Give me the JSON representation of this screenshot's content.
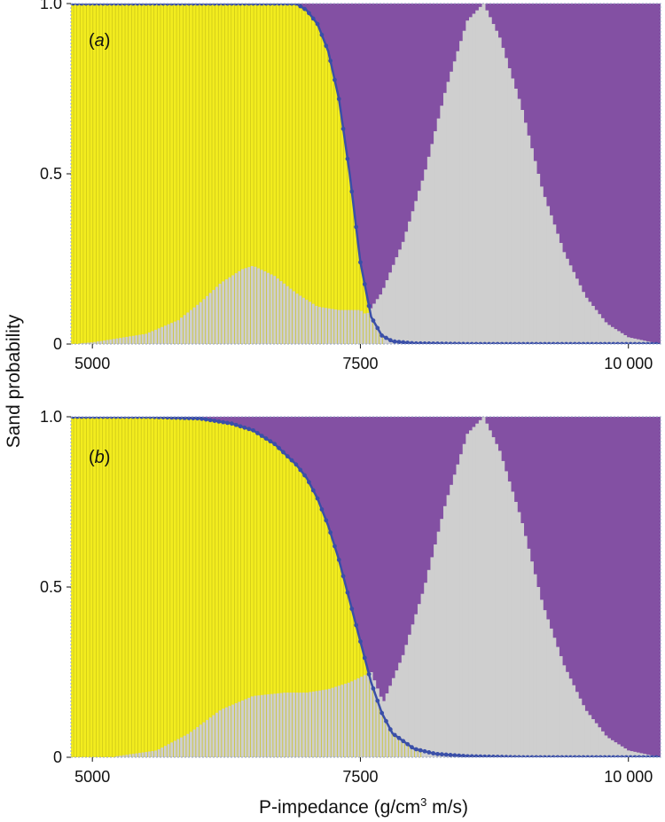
{
  "chart_data": [
    {
      "type": "bar",
      "panel_label": "(a)",
      "panel_letter": "a",
      "ylabel": "Sand probability",
      "xlabel": "P-impedance (g/cm3 m/s)",
      "xlim": [
        4800,
        10300
      ],
      "ylim": [
        0,
        1
      ],
      "x_ticks": [
        5000,
        7500,
        10000
      ],
      "x_tick_labels": [
        "5000",
        "7500",
        "10 000"
      ],
      "y_ticks": [
        0,
        0.5,
        1.0
      ],
      "y_tick_labels": [
        "0",
        "0.5",
        "1.0"
      ],
      "colors": {
        "sand_region": "#f2ec1e",
        "shale_region": "#8350a3",
        "histogram": "#cfcfcf",
        "curve": "#3a4fa8"
      },
      "curve": {
        "name": "sand probability",
        "x": [
          4800,
          5500,
          6000,
          6500,
          6900,
          7000,
          7100,
          7200,
          7300,
          7400,
          7500,
          7600,
          7700,
          7800,
          8000,
          8500,
          9000,
          10300
        ],
        "y": [
          1.0,
          1.0,
          1.0,
          1.0,
          1.0,
          0.98,
          0.94,
          0.86,
          0.72,
          0.5,
          0.24,
          0.08,
          0.025,
          0.008,
          0.002,
          0.0,
          0.0,
          0.0
        ]
      },
      "sand_histogram": {
        "x": [
          4800,
          5000,
          5500,
          5800,
          6000,
          6200,
          6400,
          6500,
          6700,
          6900,
          7100,
          7300,
          7500,
          7700,
          7900,
          8100
        ],
        "y": [
          0.0,
          0.005,
          0.03,
          0.07,
          0.12,
          0.18,
          0.22,
          0.23,
          0.2,
          0.15,
          0.11,
          0.1,
          0.1,
          0.05,
          0.01,
          0.0
        ]
      },
      "shale_histogram": {
        "x": [
          7200,
          7500,
          7700,
          7900,
          8100,
          8300,
          8500,
          8650,
          8800,
          9000,
          9200,
          9400,
          9600,
          9800,
          10000,
          10300
        ],
        "y": [
          0.0,
          0.06,
          0.15,
          0.3,
          0.5,
          0.75,
          0.95,
          1.0,
          0.9,
          0.7,
          0.45,
          0.27,
          0.14,
          0.06,
          0.02,
          0.0
        ]
      }
    },
    {
      "type": "bar",
      "panel_label": "(b)",
      "panel_letter": "b",
      "ylabel": "Sand probability",
      "xlabel": "P-impedance (g/cm3 m/s)",
      "xlim": [
        4800,
        10300
      ],
      "ylim": [
        0,
        1
      ],
      "x_ticks": [
        5000,
        7500,
        10000
      ],
      "x_tick_labels": [
        "5000",
        "7500",
        "10 000"
      ],
      "y_ticks": [
        0,
        0.5,
        1.0
      ],
      "y_tick_labels": [
        "0",
        "0.5",
        "1.0"
      ],
      "colors": {
        "sand_region": "#f2ec1e",
        "shale_region": "#8350a3",
        "histogram": "#cfcfcf",
        "curve": "#3a4fa8"
      },
      "curve": {
        "name": "sand probability",
        "x": [
          4800,
          5500,
          6000,
          6300,
          6500,
          6700,
          6900,
          7000,
          7100,
          7200,
          7300,
          7400,
          7500,
          7600,
          7700,
          7800,
          8000,
          8200,
          8500,
          9000,
          10300
        ],
        "y": [
          1.0,
          1.0,
          0.995,
          0.98,
          0.96,
          0.92,
          0.86,
          0.82,
          0.76,
          0.68,
          0.58,
          0.46,
          0.34,
          0.22,
          0.13,
          0.07,
          0.025,
          0.01,
          0.003,
          0.0,
          0.0
        ]
      },
      "sand_histogram": {
        "x": [
          4800,
          5200,
          5600,
          5900,
          6200,
          6500,
          6800,
          7000,
          7200,
          7400,
          7600,
          7700,
          7900,
          8100,
          8300
        ],
        "y": [
          0.0,
          0.002,
          0.02,
          0.07,
          0.14,
          0.18,
          0.19,
          0.19,
          0.2,
          0.22,
          0.25,
          0.17,
          0.06,
          0.01,
          0.0
        ]
      },
      "shale_histogram": {
        "x": [
          7200,
          7500,
          7700,
          7900,
          8100,
          8300,
          8500,
          8650,
          8800,
          9000,
          9200,
          9400,
          9600,
          9800,
          10000,
          10300
        ],
        "y": [
          0.0,
          0.06,
          0.15,
          0.3,
          0.5,
          0.75,
          0.95,
          1.0,
          0.9,
          0.7,
          0.45,
          0.27,
          0.14,
          0.06,
          0.02,
          0.0
        ]
      }
    }
  ],
  "axis_titles": {
    "ylabel": "Sand probability",
    "xlabel_main": "P-impedance (g/cm",
    "xlabel_sup": "3",
    "xlabel_rest": " m/s)"
  }
}
